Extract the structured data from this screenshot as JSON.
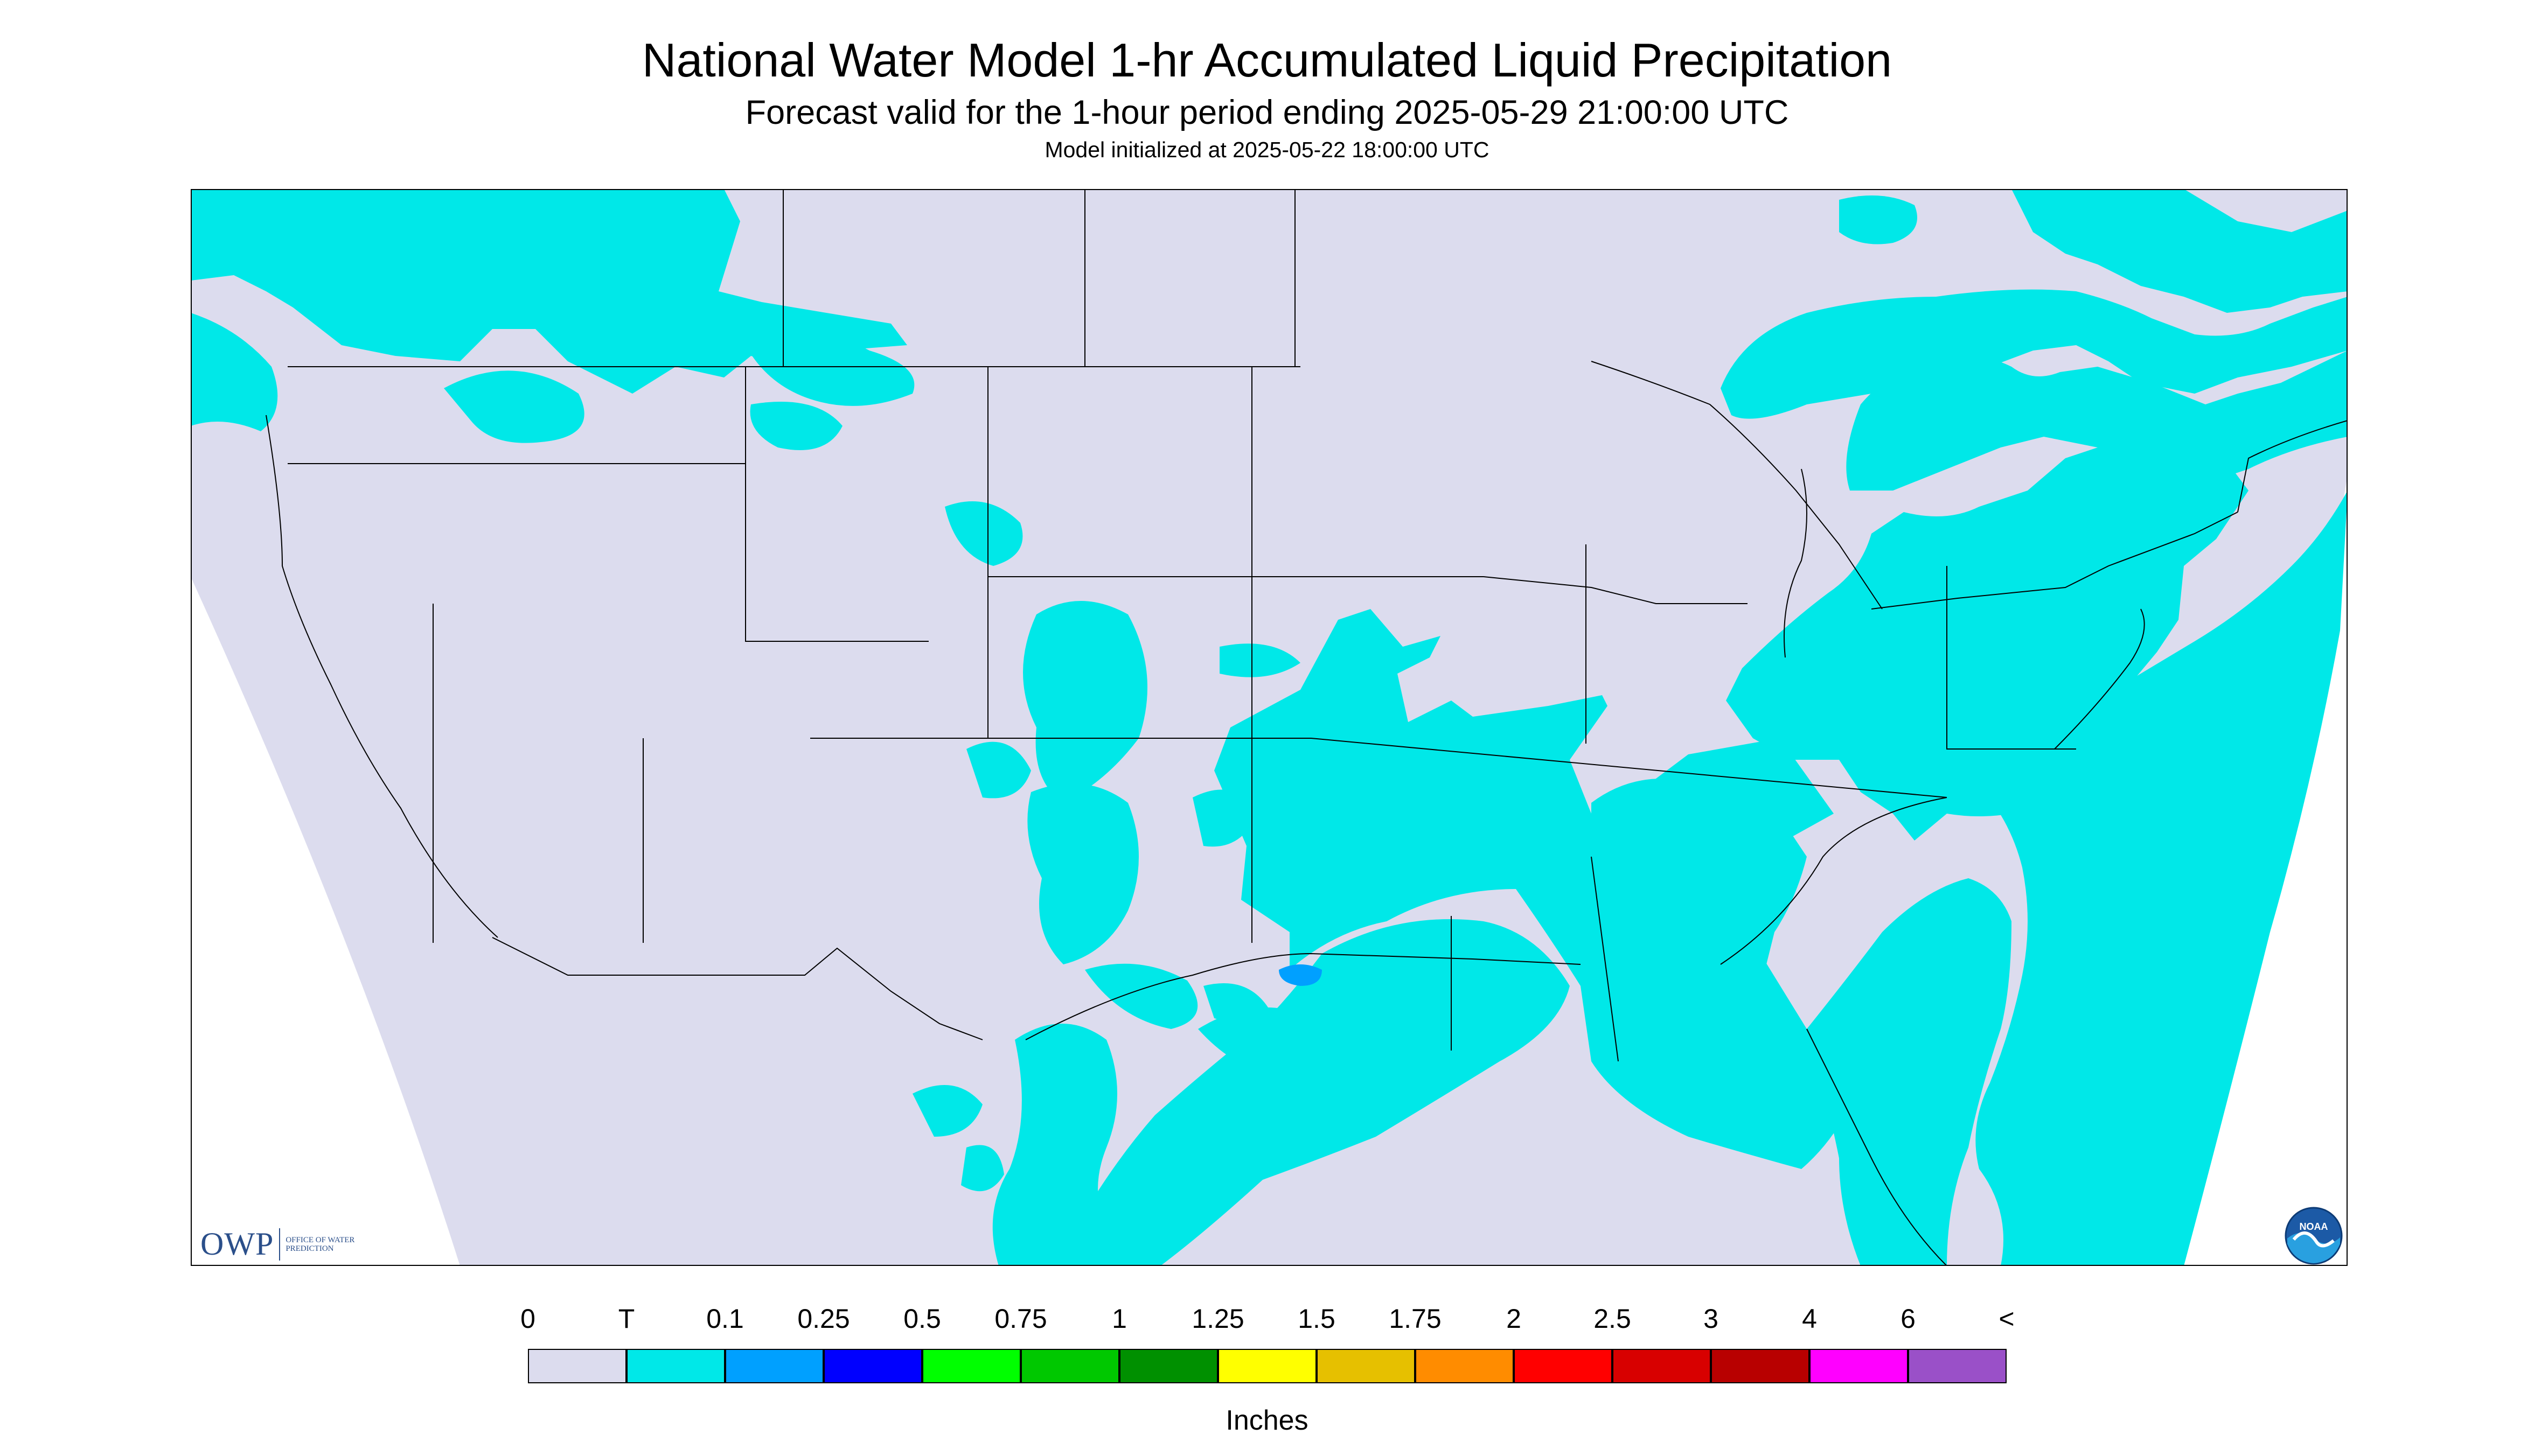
{
  "header": {
    "title": "National Water Model 1-hr Accumulated Liquid Precipitation",
    "subtitle": "Forecast valid for the 1-hour period ending 2025-05-29 21:00:00 UTC",
    "init": "Model initialized at 2025-05-22 18:00:00 UTC"
  },
  "logos": {
    "owp_main": "OWP",
    "owp_sub": "OFFICE OF WATER PREDICTION",
    "noaa": "NOAA"
  },
  "map": {
    "background_color": "#dcdcee",
    "outside_domain_color": "#ffffff",
    "border_color": "#000000"
  },
  "legend": {
    "units": "Inches",
    "labels": [
      "0",
      "T",
      "0.1",
      "0.25",
      "0.5",
      "0.75",
      "1",
      "1.25",
      "1.5",
      "1.75",
      "2",
      "2.5",
      "3",
      "4",
      "6",
      "<"
    ],
    "colors": [
      "#dcdcee",
      "#00e8e8",
      "#00a0ff",
      "#0000ff",
      "#00ff00",
      "#00c800",
      "#009000",
      "#ffff00",
      "#e6c000",
      "#ff8c00",
      "#ff0000",
      "#d80000",
      "#b80000",
      "#ff00ff",
      "#9a50c8"
    ]
  }
}
